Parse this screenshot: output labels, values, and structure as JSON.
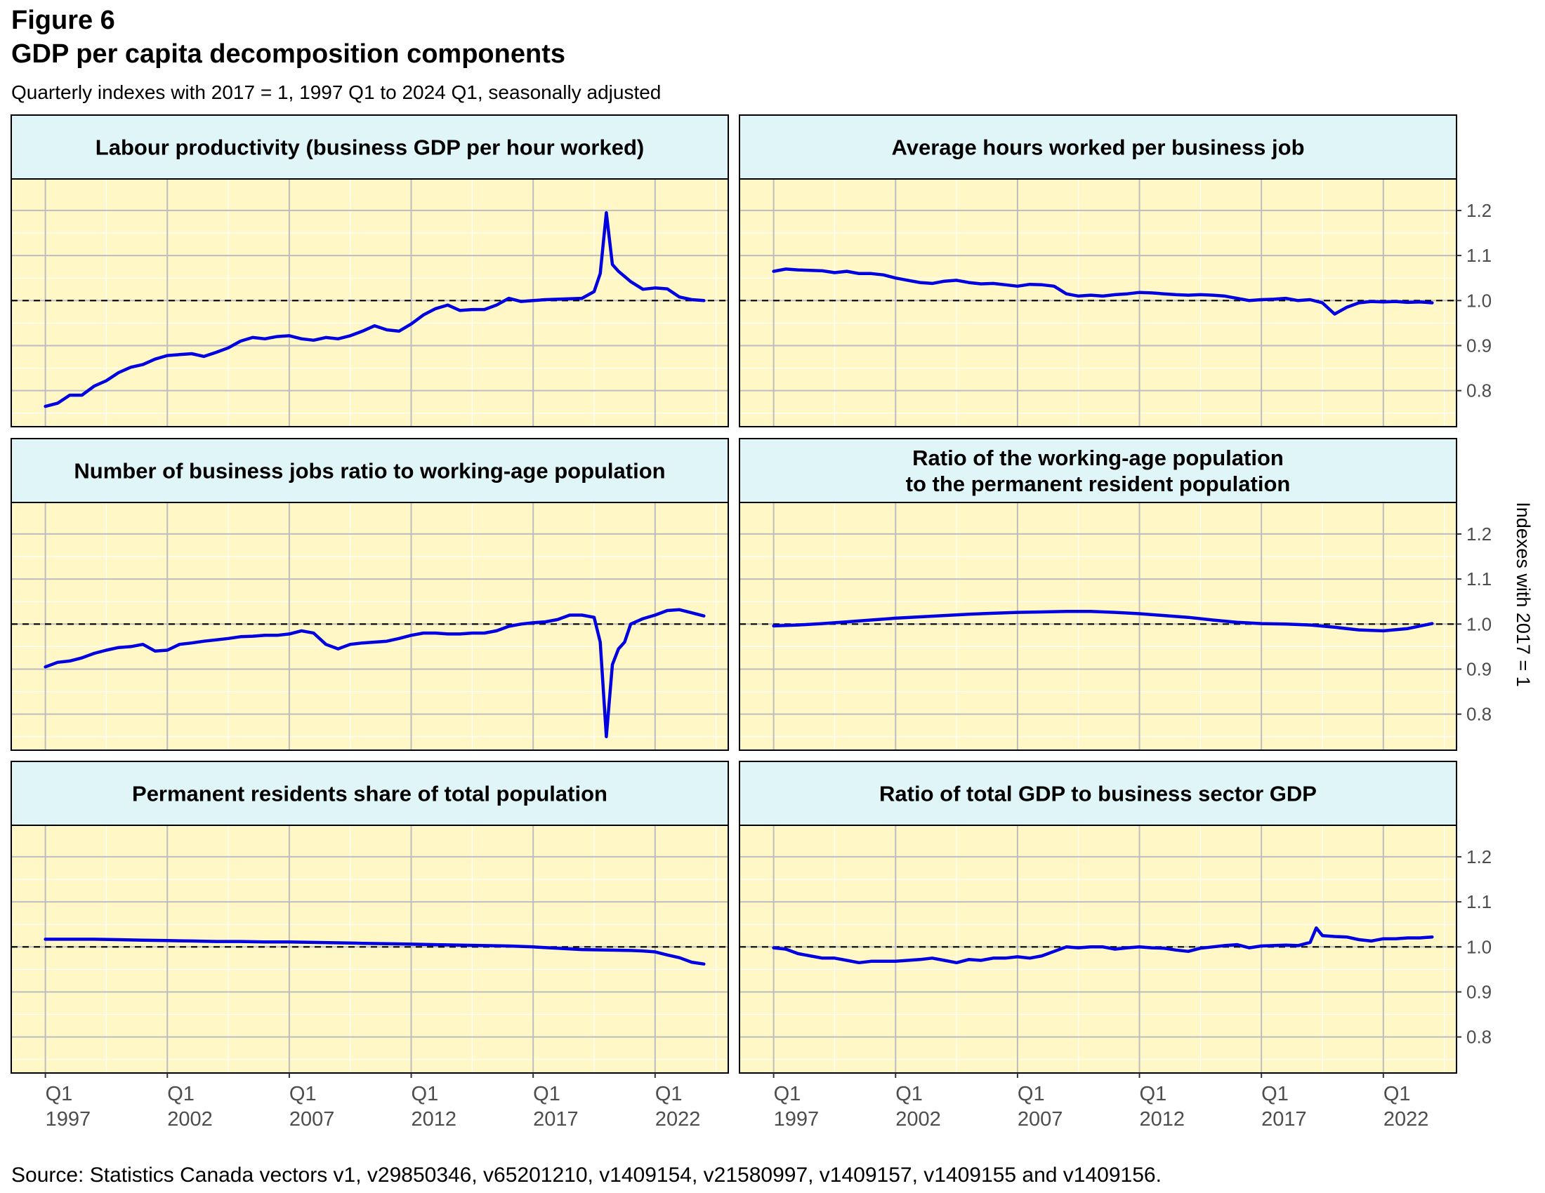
{
  "figure": {
    "label": "Figure 6",
    "title": "GDP per capita decomposition components",
    "subtitle": "Quarterly indexes with 2017 = 1, 1997 Q1 to 2024 Q1, seasonally adjusted",
    "source": "Source: Statistics Canada vectors v1, v29850346, v65201210, v1409154, v21580997, v1409157, v1409155 and v1409156."
  },
  "colors": {
    "panel_bg": "#fff8c6",
    "strip_bg": "#dff5f8",
    "line": "#0000e0",
    "grid_major": "#bdbdbd",
    "grid_minor": "#ffffff",
    "reference": "#000000"
  },
  "chart_data": {
    "type": "line",
    "facet_layout": "3 rows x 2 columns",
    "ylabel": "Indexes with 2017 = 1",
    "ylim": [
      0.72,
      1.27
    ],
    "yticks": [
      0.8,
      0.9,
      1.0,
      1.1,
      1.2
    ],
    "ytick_labels": [
      "0.8",
      "0.9",
      "1.0",
      "1.1",
      "1.2"
    ],
    "xlim": [
      1995.6,
      2025.0
    ],
    "xticks": [
      1997,
      2002,
      2007,
      2012,
      2017,
      2022
    ],
    "xtick_labels": [
      [
        "Q1",
        "1997"
      ],
      [
        "Q1",
        "2002"
      ],
      [
        "Q1",
        "2007"
      ],
      [
        "Q1",
        "2012"
      ],
      [
        "Q1",
        "2017"
      ],
      [
        "Q1",
        "2022"
      ]
    ],
    "reference_line": 1.0,
    "grid": true,
    "panels": [
      {
        "title": [
          "Labour productivity (business GDP per hour worked)"
        ],
        "x": [
          1997.0,
          1997.5,
          1998.0,
          1998.5,
          1999.0,
          1999.5,
          2000.0,
          2000.5,
          2001.0,
          2001.5,
          2002.0,
          2002.5,
          2003.0,
          2003.5,
          2004.0,
          2004.5,
          2005.0,
          2005.5,
          2006.0,
          2006.5,
          2007.0,
          2007.5,
          2008.0,
          2008.5,
          2009.0,
          2009.5,
          2010.0,
          2010.5,
          2011.0,
          2011.5,
          2012.0,
          2012.5,
          2013.0,
          2013.5,
          2014.0,
          2014.5,
          2015.0,
          2015.5,
          2016.0,
          2016.5,
          2017.0,
          2017.5,
          2018.0,
          2018.5,
          2019.0,
          2019.5,
          2019.75,
          2020.0,
          2020.25,
          2020.5,
          2021.0,
          2021.5,
          2022.0,
          2022.5,
          2023.0,
          2023.5,
          2024.0
        ],
        "values": [
          0.765,
          0.772,
          0.79,
          0.79,
          0.81,
          0.822,
          0.84,
          0.852,
          0.858,
          0.87,
          0.878,
          0.88,
          0.882,
          0.876,
          0.885,
          0.895,
          0.91,
          0.918,
          0.915,
          0.92,
          0.922,
          0.915,
          0.912,
          0.918,
          0.915,
          0.922,
          0.932,
          0.944,
          0.935,
          0.932,
          0.948,
          0.968,
          0.982,
          0.99,
          0.978,
          0.98,
          0.98,
          0.99,
          1.005,
          0.998,
          1.0,
          1.002,
          1.003,
          1.004,
          1.005,
          1.02,
          1.06,
          1.195,
          1.08,
          1.065,
          1.042,
          1.025,
          1.028,
          1.026,
          1.008,
          1.002,
          1.0
        ]
      },
      {
        "title": [
          "Average hours worked per business job"
        ],
        "x": [
          1997.0,
          1997.5,
          1998.0,
          1998.5,
          1999.0,
          1999.5,
          2000.0,
          2000.5,
          2001.0,
          2001.5,
          2002.0,
          2002.5,
          2003.0,
          2003.5,
          2004.0,
          2004.5,
          2005.0,
          2005.5,
          2006.0,
          2006.5,
          2007.0,
          2007.5,
          2008.0,
          2008.5,
          2009.0,
          2009.5,
          2010.0,
          2010.5,
          2011.0,
          2011.5,
          2012.0,
          2012.5,
          2013.0,
          2013.5,
          2014.0,
          2014.5,
          2015.0,
          2015.5,
          2016.0,
          2016.5,
          2017.0,
          2017.5,
          2018.0,
          2018.5,
          2019.0,
          2019.5,
          2020.0,
          2020.5,
          2021.0,
          2021.5,
          2022.0,
          2022.5,
          2023.0,
          2023.5,
          2024.0
        ],
        "values": [
          1.065,
          1.07,
          1.068,
          1.067,
          1.066,
          1.062,
          1.065,
          1.06,
          1.06,
          1.057,
          1.05,
          1.045,
          1.04,
          1.038,
          1.043,
          1.045,
          1.04,
          1.037,
          1.038,
          1.035,
          1.032,
          1.036,
          1.035,
          1.032,
          1.015,
          1.01,
          1.012,
          1.01,
          1.013,
          1.015,
          1.018,
          1.017,
          1.015,
          1.013,
          1.012,
          1.013,
          1.012,
          1.01,
          1.005,
          1.0,
          1.002,
          1.003,
          1.005,
          1.0,
          1.002,
          0.995,
          0.97,
          0.985,
          0.995,
          0.998,
          0.997,
          0.998,
          0.996,
          0.997,
          0.995
        ]
      },
      {
        "title": [
          "Number of business jobs ratio to working-age population"
        ],
        "x": [
          1997.0,
          1997.5,
          1998.0,
          1998.5,
          1999.0,
          1999.5,
          2000.0,
          2000.5,
          2001.0,
          2001.5,
          2002.0,
          2002.5,
          2003.0,
          2003.5,
          2004.0,
          2004.5,
          2005.0,
          2005.5,
          2006.0,
          2006.5,
          2007.0,
          2007.5,
          2008.0,
          2008.5,
          2009.0,
          2009.5,
          2010.0,
          2010.5,
          2011.0,
          2011.5,
          2012.0,
          2012.5,
          2013.0,
          2013.5,
          2014.0,
          2014.5,
          2015.0,
          2015.5,
          2016.0,
          2016.5,
          2017.0,
          2017.5,
          2018.0,
          2018.5,
          2019.0,
          2019.5,
          2019.75,
          2020.0,
          2020.25,
          2020.5,
          2020.75,
          2021.0,
          2021.5,
          2022.0,
          2022.5,
          2023.0,
          2023.5,
          2024.0
        ],
        "values": [
          0.905,
          0.915,
          0.918,
          0.925,
          0.935,
          0.942,
          0.948,
          0.95,
          0.955,
          0.94,
          0.942,
          0.955,
          0.958,
          0.962,
          0.965,
          0.968,
          0.972,
          0.973,
          0.975,
          0.975,
          0.978,
          0.985,
          0.98,
          0.955,
          0.945,
          0.955,
          0.958,
          0.96,
          0.962,
          0.968,
          0.975,
          0.98,
          0.98,
          0.978,
          0.978,
          0.98,
          0.98,
          0.985,
          0.995,
          1.0,
          1.003,
          1.005,
          1.01,
          1.02,
          1.02,
          1.015,
          0.96,
          0.75,
          0.91,
          0.945,
          0.96,
          1.0,
          1.012,
          1.02,
          1.03,
          1.032,
          1.025,
          1.018
        ]
      },
      {
        "title": [
          "Ratio of the working-age population",
          "to the permanent resident population"
        ],
        "x": [
          1997.0,
          1998.0,
          1999.0,
          2000.0,
          2001.0,
          2002.0,
          2003.0,
          2004.0,
          2005.0,
          2006.0,
          2007.0,
          2008.0,
          2009.0,
          2010.0,
          2011.0,
          2012.0,
          2013.0,
          2014.0,
          2015.0,
          2016.0,
          2017.0,
          2018.0,
          2019.0,
          2020.0,
          2021.0,
          2022.0,
          2023.0,
          2024.0
        ],
        "values": [
          0.996,
          0.998,
          1.001,
          1.005,
          1.009,
          1.013,
          1.016,
          1.019,
          1.022,
          1.024,
          1.026,
          1.027,
          1.028,
          1.028,
          1.026,
          1.023,
          1.019,
          1.015,
          1.009,
          1.004,
          1.001,
          1.0,
          0.998,
          0.993,
          0.987,
          0.985,
          0.99,
          1.001
        ]
      },
      {
        "title": [
          "Permanent residents share of total population"
        ],
        "x": [
          1997.0,
          1998.0,
          1999.0,
          2000.0,
          2001.0,
          2002.0,
          2003.0,
          2004.0,
          2005.0,
          2006.0,
          2007.0,
          2008.0,
          2009.0,
          2010.0,
          2011.0,
          2012.0,
          2013.0,
          2014.0,
          2015.0,
          2016.0,
          2017.0,
          2018.0,
          2019.0,
          2020.0,
          2021.0,
          2021.5,
          2022.0,
          2022.5,
          2023.0,
          2023.5,
          2024.0
        ],
        "values": [
          1.017,
          1.017,
          1.017,
          1.016,
          1.015,
          1.014,
          1.013,
          1.012,
          1.012,
          1.011,
          1.011,
          1.01,
          1.009,
          1.008,
          1.007,
          1.006,
          1.005,
          1.004,
          1.003,
          1.002,
          1.0,
          0.997,
          0.994,
          0.993,
          0.992,
          0.991,
          0.989,
          0.982,
          0.976,
          0.966,
          0.962
        ]
      },
      {
        "title": [
          "Ratio of total GDP to business sector GDP"
        ],
        "x": [
          1997.0,
          1997.5,
          1998.0,
          1998.5,
          1999.0,
          1999.5,
          2000.0,
          2000.5,
          2001.0,
          2001.5,
          2002.0,
          2002.5,
          2003.0,
          2003.5,
          2004.0,
          2004.5,
          2005.0,
          2005.5,
          2006.0,
          2006.5,
          2007.0,
          2007.5,
          2008.0,
          2008.5,
          2009.0,
          2009.5,
          2010.0,
          2010.5,
          2011.0,
          2011.5,
          2012.0,
          2012.5,
          2013.0,
          2013.5,
          2014.0,
          2014.5,
          2015.0,
          2015.5,
          2016.0,
          2016.5,
          2017.0,
          2017.5,
          2018.0,
          2018.5,
          2019.0,
          2019.25,
          2019.5,
          2020.0,
          2020.5,
          2021.0,
          2021.5,
          2022.0,
          2022.5,
          2023.0,
          2023.5,
          2024.0
        ],
        "values": [
          0.998,
          0.995,
          0.985,
          0.98,
          0.975,
          0.975,
          0.97,
          0.965,
          0.968,
          0.968,
          0.968,
          0.97,
          0.972,
          0.975,
          0.97,
          0.965,
          0.972,
          0.97,
          0.975,
          0.975,
          0.978,
          0.975,
          0.98,
          0.99,
          1.0,
          0.998,
          1.0,
          1.0,
          0.995,
          0.998,
          1.0,
          0.998,
          0.997,
          0.993,
          0.99,
          0.997,
          1.0,
          1.003,
          1.005,
          0.998,
          1.002,
          1.003,
          1.004,
          1.003,
          1.01,
          1.042,
          1.025,
          1.023,
          1.022,
          1.016,
          1.013,
          1.018,
          1.018,
          1.02,
          1.02,
          1.022
        ]
      }
    ]
  }
}
